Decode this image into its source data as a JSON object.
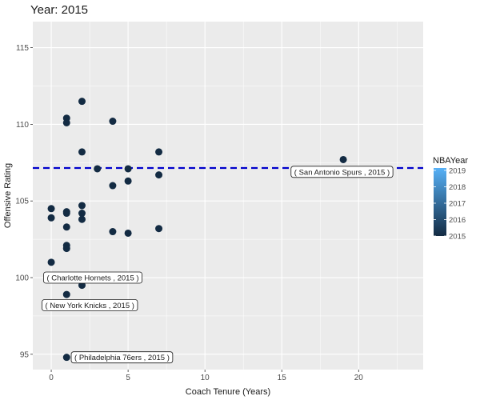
{
  "chart_data": {
    "type": "scatter",
    "title": "Year: 2015",
    "xlabel": "Coach Tenure (Years)",
    "ylabel": "Offensive Rating",
    "xlim": [
      -1.2,
      24.2
    ],
    "ylim": [
      94.0,
      116.7
    ],
    "x_ticks": [
      0,
      5,
      10,
      15,
      20
    ],
    "y_ticks": [
      95,
      100,
      105,
      110,
      115
    ],
    "grid": true,
    "points": [
      {
        "x": 0,
        "y": 104.5
      },
      {
        "x": 0,
        "y": 103.9
      },
      {
        "x": 0,
        "y": 101.0
      },
      {
        "x": 1,
        "y": 110.4
      },
      {
        "x": 1,
        "y": 110.1
      },
      {
        "x": 1,
        "y": 104.3
      },
      {
        "x": 1,
        "y": 104.2
      },
      {
        "x": 1,
        "y": 103.3
      },
      {
        "x": 1,
        "y": 102.1
      },
      {
        "x": 1,
        "y": 101.9
      },
      {
        "x": 1,
        "y": 98.9
      },
      {
        "x": 1,
        "y": 94.8
      },
      {
        "x": 2,
        "y": 111.5
      },
      {
        "x": 2,
        "y": 108.2
      },
      {
        "x": 2,
        "y": 104.7
      },
      {
        "x": 2,
        "y": 104.2
      },
      {
        "x": 2,
        "y": 103.8
      },
      {
        "x": 2,
        "y": 99.5
      },
      {
        "x": 3,
        "y": 107.1
      },
      {
        "x": 4,
        "y": 110.2
      },
      {
        "x": 4,
        "y": 106.0
      },
      {
        "x": 4,
        "y": 103.0
      },
      {
        "x": 5,
        "y": 107.1
      },
      {
        "x": 5,
        "y": 106.3
      },
      {
        "x": 5,
        "y": 102.9
      },
      {
        "x": 7,
        "y": 108.2
      },
      {
        "x": 7,
        "y": 106.7
      },
      {
        "x": 7,
        "y": 103.2
      },
      {
        "x": 19,
        "y": 107.7
      }
    ],
    "reference_line": {
      "y": 107.15,
      "style": "dashed",
      "color": "#0000cc"
    },
    "annotations": [
      {
        "text": "( San Antonio Spurs , 2015 )",
        "x": 15.6,
        "y": 106.9,
        "anchor": "start"
      },
      {
        "text": "( Charlotte Hornets , 2015 )",
        "x": -0.5,
        "y": 100.0,
        "anchor": "start"
      },
      {
        "text": "( New York Knicks , 2015 )",
        "x": -0.6,
        "y": 98.2,
        "anchor": "start"
      },
      {
        "text": "( Philadelphia 76ers , 2015 )",
        "x": 1.3,
        "y": 94.8,
        "anchor": "start"
      }
    ],
    "legend": {
      "title": "NBAYear",
      "placement": "right",
      "labels": [
        "2019",
        "2018",
        "2017",
        "2016",
        "2015"
      ],
      "color_low": "#132b43",
      "color_high": "#56b1f7"
    },
    "point_color": "#132b43",
    "panel_background": "#ebebeb",
    "gridline_color": "#ffffff"
  }
}
